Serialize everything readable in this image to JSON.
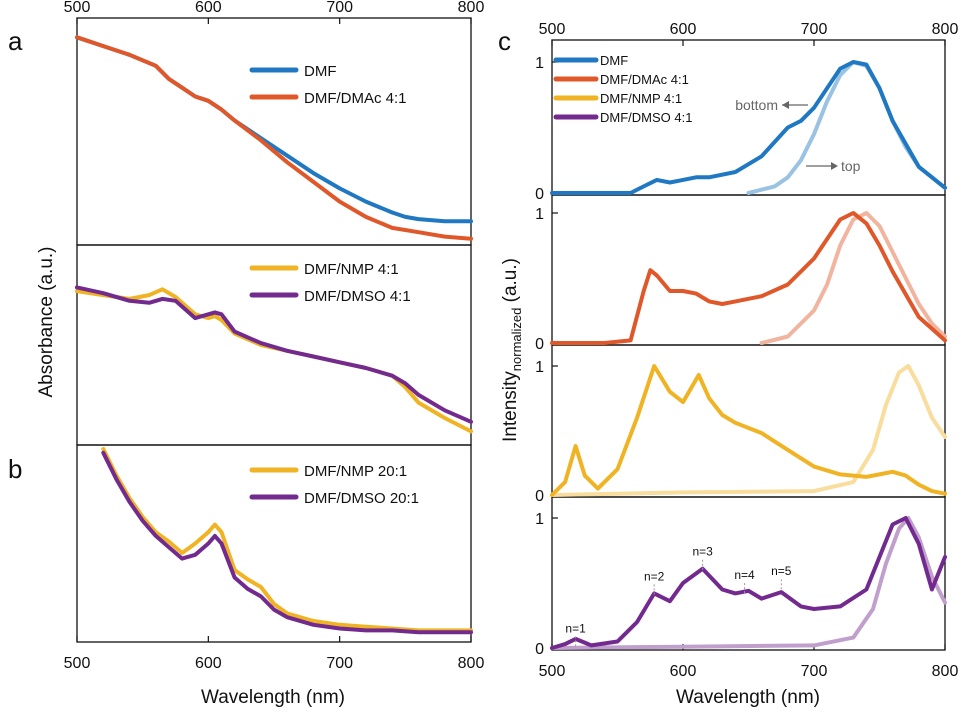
{
  "colors": {
    "blue": "#1f78c1",
    "orange": "#e0582a",
    "yellow": "#f0b323",
    "purple": "#732a8f"
  },
  "panel_letters": [
    "a",
    "b",
    "c"
  ],
  "chart_data": [
    {
      "id": "a",
      "type": "line",
      "xlabel": "",
      "ylabel": "Absorbance (a.u.)",
      "xlim": [
        500,
        800
      ],
      "xticks": [
        500,
        600,
        700,
        800
      ],
      "subpanels": [
        {
          "series": [
            {
              "name": "DMF",
              "color": "blue",
              "x": [
                500,
                520,
                540,
                560,
                570,
                580,
                590,
                600,
                610,
                620,
                640,
                660,
                680,
                700,
                720,
                740,
                750,
                760,
                780,
                800
              ],
              "y": [
                0.93,
                0.89,
                0.85,
                0.8,
                0.74,
                0.7,
                0.66,
                0.64,
                0.6,
                0.55,
                0.47,
                0.39,
                0.31,
                0.24,
                0.18,
                0.13,
                0.11,
                0.1,
                0.09,
                0.09
              ]
            },
            {
              "name": "DMF/DMAc 4:1",
              "color": "orange",
              "x": [
                500,
                520,
                540,
                560,
                570,
                580,
                590,
                600,
                610,
                620,
                640,
                660,
                680,
                700,
                720,
                740,
                760,
                780,
                800
              ],
              "y": [
                0.93,
                0.89,
                0.85,
                0.8,
                0.74,
                0.7,
                0.66,
                0.64,
                0.6,
                0.55,
                0.46,
                0.36,
                0.27,
                0.18,
                0.11,
                0.06,
                0.04,
                0.02,
                0.01
              ]
            }
          ]
        },
        {
          "series": [
            {
              "name": "DMF/NMP 4:1",
              "color": "yellow",
              "x": [
                500,
                520,
                540,
                555,
                565,
                575,
                590,
                600,
                605,
                610,
                620,
                640,
                660,
                680,
                700,
                720,
                740,
                750,
                760,
                780,
                800
              ],
              "y": [
                0.78,
                0.76,
                0.74,
                0.76,
                0.79,
                0.75,
                0.66,
                0.64,
                0.65,
                0.63,
                0.56,
                0.5,
                0.47,
                0.44,
                0.41,
                0.38,
                0.34,
                0.28,
                0.2,
                0.12,
                0.05
              ]
            },
            {
              "name": "DMF/DMSO 4:1",
              "color": "purple",
              "x": [
                500,
                520,
                540,
                555,
                565,
                575,
                590,
                600,
                605,
                610,
                620,
                640,
                660,
                680,
                700,
                720,
                740,
                750,
                760,
                780,
                800
              ],
              "y": [
                0.8,
                0.77,
                0.73,
                0.72,
                0.74,
                0.73,
                0.64,
                0.66,
                0.67,
                0.66,
                0.57,
                0.51,
                0.47,
                0.44,
                0.41,
                0.38,
                0.34,
                0.3,
                0.24,
                0.16,
                0.1
              ]
            }
          ]
        }
      ]
    },
    {
      "id": "b",
      "type": "line",
      "xlabel": "Wavelength (nm)",
      "ylabel": "",
      "xlim": [
        500,
        800
      ],
      "xticks": [
        500,
        600,
        700,
        800
      ],
      "series": [
        {
          "name": "DMF/NMP 20:1",
          "color": "yellow",
          "x": [
            520,
            530,
            540,
            550,
            560,
            570,
            580,
            590,
            600,
            605,
            610,
            620,
            630,
            640,
            650,
            660,
            680,
            700,
            720,
            740,
            760,
            780,
            800
          ],
          "y": [
            1.0,
            0.86,
            0.74,
            0.64,
            0.56,
            0.51,
            0.45,
            0.5,
            0.56,
            0.6,
            0.56,
            0.36,
            0.31,
            0.27,
            0.18,
            0.13,
            0.09,
            0.07,
            0.06,
            0.05,
            0.04,
            0.04,
            0.04
          ]
        },
        {
          "name": "DMF/DMSO 20:1",
          "color": "purple",
          "x": [
            520,
            530,
            540,
            550,
            560,
            570,
            580,
            590,
            600,
            605,
            610,
            620,
            630,
            640,
            650,
            660,
            680,
            700,
            720,
            740,
            760,
            780,
            800
          ],
          "y": [
            0.98,
            0.84,
            0.72,
            0.62,
            0.54,
            0.48,
            0.42,
            0.44,
            0.5,
            0.54,
            0.5,
            0.32,
            0.26,
            0.22,
            0.15,
            0.11,
            0.07,
            0.05,
            0.04,
            0.04,
            0.03,
            0.03,
            0.03
          ]
        }
      ]
    },
    {
      "id": "c",
      "type": "line",
      "xlabel": "Wavelength (nm)",
      "ylabel": "Intensity",
      "ylabel_sub": "normalized",
      "ylabel_tail": " (a.u.)",
      "xlim": [
        500,
        800
      ],
      "xticks": [
        500,
        600,
        700,
        800
      ],
      "ylim": [
        0,
        1
      ],
      "yticks": [
        0,
        1
      ],
      "legend": [
        "DMF",
        "DMF/DMAc 4:1",
        "DMF/NMP 4:1",
        "DMF/DMSO 4:1"
      ],
      "annotations_top": {
        "bottom_label": "bottom",
        "top_label": "top"
      },
      "annotations_bottom": [
        {
          "text": "n=1",
          "x": 518,
          "y": 0.12
        },
        {
          "text": "n=2",
          "x": 578,
          "y": 0.52
        },
        {
          "text": "n=3",
          "x": 615,
          "y": 0.71
        },
        {
          "text": "n=4",
          "x": 647,
          "y": 0.53
        },
        {
          "text": "n=5",
          "x": 675,
          "y": 0.56
        }
      ],
      "subpanels": [
        {
          "color": "blue",
          "series": [
            {
              "name": "DMF",
              "x": [
                500,
                540,
                560,
                570,
                580,
                590,
                600,
                610,
                620,
                640,
                660,
                680,
                690,
                700,
                710,
                720,
                730,
                740,
                750,
                760,
                780,
                800
              ],
              "y": [
                0,
                0,
                0,
                0.05,
                0.1,
                0.08,
                0.1,
                0.12,
                0.12,
                0.16,
                0.28,
                0.5,
                0.55,
                0.65,
                0.8,
                0.95,
                1.0,
                0.98,
                0.8,
                0.55,
                0.2,
                0.04
              ]
            },
            {
              "name": "DMF top",
              "light": true,
              "x": [
                650,
                670,
                680,
                690,
                700,
                710,
                720,
                730,
                740,
                750,
                760,
                770,
                780,
                800
              ],
              "y": [
                0,
                0.05,
                0.12,
                0.25,
                0.45,
                0.7,
                0.9,
                1.0,
                0.97,
                0.8,
                0.55,
                0.35,
                0.2,
                0.04
              ]
            }
          ]
        },
        {
          "color": "orange",
          "series": [
            {
              "name": "DMF/DMAc 4:1",
              "x": [
                500,
                540,
                560,
                570,
                575,
                580,
                590,
                600,
                610,
                620,
                630,
                640,
                660,
                680,
                700,
                710,
                720,
                730,
                740,
                750,
                760,
                780,
                800
              ],
              "y": [
                0,
                0,
                0.02,
                0.4,
                0.56,
                0.52,
                0.4,
                0.4,
                0.38,
                0.32,
                0.3,
                0.32,
                0.36,
                0.45,
                0.65,
                0.8,
                0.95,
                1.0,
                0.92,
                0.75,
                0.55,
                0.2,
                0.02
              ]
            },
            {
              "name": "DMF/DMAc 4:1 top",
              "light": true,
              "x": [
                660,
                680,
                700,
                710,
                720,
                730,
                740,
                750,
                760,
                770,
                780,
                790,
                800
              ],
              "y": [
                0,
                0.05,
                0.25,
                0.45,
                0.75,
                0.95,
                1.0,
                0.9,
                0.7,
                0.5,
                0.3,
                0.15,
                0.05
              ]
            }
          ]
        },
        {
          "color": "yellow",
          "series": [
            {
              "name": "DMF/NMP 4:1",
              "x": [
                500,
                510,
                518,
                525,
                535,
                550,
                565,
                578,
                590,
                600,
                612,
                620,
                630,
                640,
                660,
                680,
                700,
                720,
                740,
                760,
                770,
                780,
                790,
                800
              ],
              "y": [
                0,
                0.1,
                0.38,
                0.15,
                0.05,
                0.2,
                0.6,
                1.0,
                0.8,
                0.72,
                0.93,
                0.75,
                0.62,
                0.56,
                0.48,
                0.35,
                0.22,
                0.16,
                0.14,
                0.18,
                0.15,
                0.08,
                0.03,
                0.01
              ]
            },
            {
              "name": "DMF/NMP 4:1 top",
              "light": true,
              "x": [
                500,
                600,
                700,
                730,
                745,
                755,
                765,
                772,
                780,
                790,
                800
              ],
              "y": [
                0,
                0.02,
                0.03,
                0.1,
                0.35,
                0.7,
                0.95,
                1.0,
                0.85,
                0.6,
                0.45
              ]
            }
          ]
        },
        {
          "color": "purple",
          "series": [
            {
              "name": "DMF/DMSO 4:1",
              "x": [
                500,
                510,
                518,
                530,
                550,
                565,
                578,
                590,
                600,
                615,
                630,
                640,
                650,
                660,
                675,
                690,
                700,
                720,
                740,
                750,
                760,
                770,
                780,
                790,
                800
              ],
              "y": [
                0,
                0.03,
                0.07,
                0.02,
                0.05,
                0.2,
                0.42,
                0.36,
                0.5,
                0.61,
                0.45,
                0.42,
                0.44,
                0.38,
                0.43,
                0.32,
                0.3,
                0.32,
                0.45,
                0.7,
                0.95,
                1.0,
                0.8,
                0.45,
                0.7
              ]
            },
            {
              "name": "DMF/DMSO 4:1 top",
              "light": true,
              "x": [
                500,
                600,
                700,
                730,
                745,
                755,
                765,
                772,
                780,
                790,
                800
              ],
              "y": [
                0,
                0.01,
                0.02,
                0.08,
                0.3,
                0.65,
                0.92,
                1.0,
                0.85,
                0.55,
                0.35
              ]
            }
          ]
        }
      ]
    }
  ]
}
